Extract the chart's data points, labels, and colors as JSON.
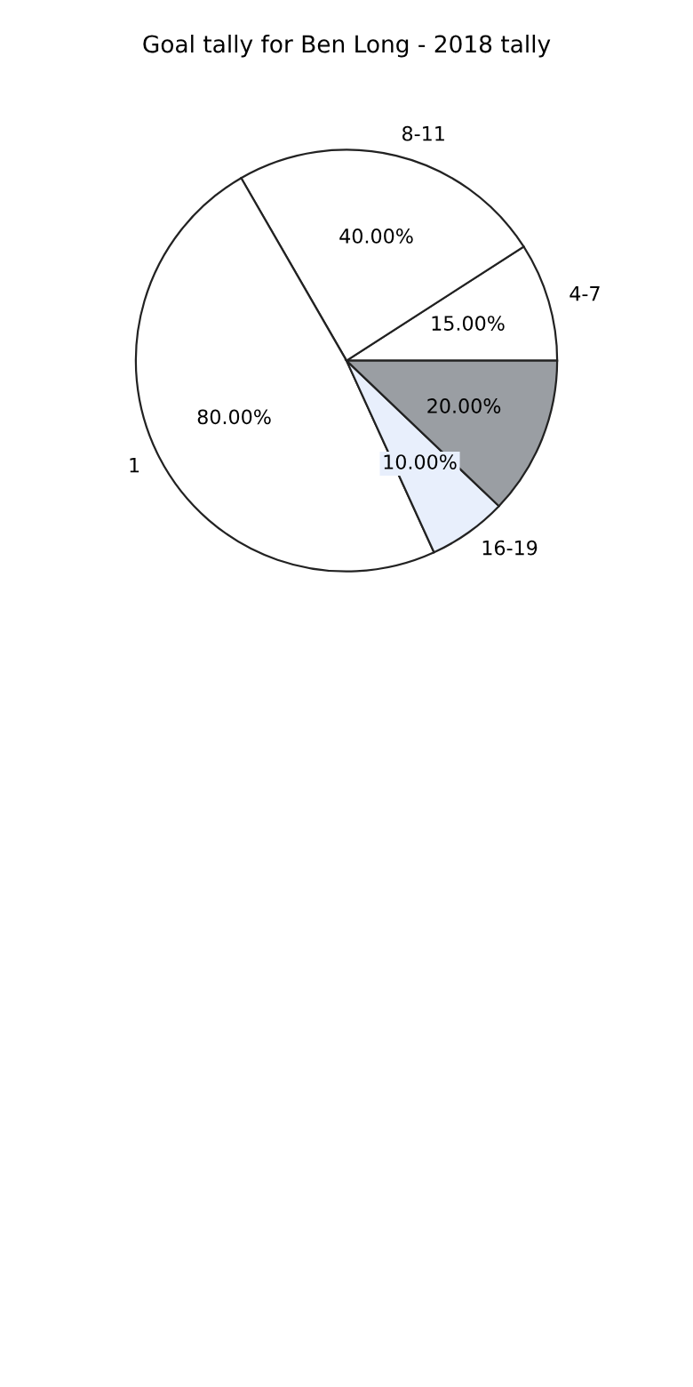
{
  "chart_data": {
    "type": "pie",
    "title": "Goal tally for Ben Long - 2018 tally",
    "categories": [
      "4-7",
      "8-11",
      "1",
      "16-19",
      null
    ],
    "values": [
      15,
      40,
      80,
      10,
      20
    ],
    "value_labels": [
      "15.00%",
      "40.00%",
      "80.00%",
      "10.00%",
      "20.00%"
    ],
    "colors": [
      "#ffffff",
      "#ffffff",
      "#ffffff",
      "#e8effc",
      "#9a9ea3"
    ]
  }
}
